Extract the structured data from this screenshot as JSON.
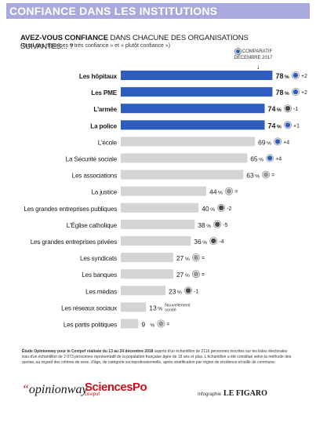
{
  "header": {
    "banner_title": "CONFIANCE DANS LES INSTITUTIONS",
    "question_bold": "AVEZ-VOUS CONFIANCE",
    "question_rest": " DANS CHACUNE DES ORGANISATIONS SUIVANTES... ?",
    "subquestion": "(Total des réponses « très confiance » et « plutôt confiance »)",
    "comparison_line1": "COMPARATIF",
    "comparison_line2": "DÉCEMBRE 2017",
    "arrow": "↓"
  },
  "colors": {
    "banner": "#a9a9de",
    "bar_highlight": "#2f5cbf",
    "bar_normal": "#d4d4d4",
    "icon_up": "#2f5cbf",
    "icon_down": "#4a4a4a",
    "icon_equal": "#9a9a9a",
    "brand_red": "#c4121a"
  },
  "chart_data": {
    "type": "bar",
    "orientation": "horizontal",
    "title": "AVEZ-VOUS CONFIANCE DANS CHACUNE DES ORGANISATIONS SUIVANTES... ?",
    "value_unit": "%",
    "xlim": [
      0,
      100
    ],
    "grid": false,
    "categories": [
      "Les hôpitaux",
      "Les PME",
      "L'armée",
      "La police",
      "L'école",
      "La Sécurité sociale",
      "Les associations",
      "La justice",
      "Les grandes entreprises publiques",
      "L'Église catholique",
      "Les grandes entreprises privées",
      "Les syndicats",
      "Les banques",
      "Les médias",
      "Les réseaux sociaux",
      "Les partis politiques"
    ],
    "values": [
      78,
      78,
      74,
      74,
      69,
      65,
      63,
      44,
      40,
      38,
      36,
      27,
      27,
      23,
      13,
      9
    ],
    "highlighted": [
      true,
      true,
      true,
      true,
      false,
      false,
      false,
      false,
      false,
      false,
      false,
      false,
      false,
      false,
      false,
      false
    ],
    "comparison_dec_2017": [
      {
        "direction": "up",
        "label": "+2"
      },
      {
        "direction": "up",
        "label": "+2"
      },
      {
        "direction": "down",
        "label": "-1"
      },
      {
        "direction": "up",
        "label": "+1"
      },
      {
        "direction": "up",
        "label": "+4"
      },
      {
        "direction": "up",
        "label": "+4"
      },
      {
        "direction": "equal",
        "label": "="
      },
      {
        "direction": "equal",
        "label": "="
      },
      {
        "direction": "down",
        "label": "-2"
      },
      {
        "direction": "down",
        "label": "-5"
      },
      {
        "direction": "down",
        "label": "-4"
      },
      {
        "direction": "equal",
        "label": "="
      },
      {
        "direction": "equal",
        "label": "="
      },
      {
        "direction": "down",
        "label": "-1"
      },
      {
        "direction": "new",
        "label": "Nouvellement sondé"
      },
      {
        "direction": "equal",
        "label": "="
      }
    ]
  },
  "footer": {
    "source_bold": "Étude Opinionway pour le Cevipof réalisée du 13 au 24 décembre 2018",
    "source_text": " auprès d'un échantillon de 2116 personnes inscrites sur les listes électorales issu d'un échantillon de 2 073 personnes représentatif de la population française âgée de 18 ans et plus. L'échantillon a été constitué selon la méthode des quotas, au regard des critères de sexe, d'âge, de catégorie socioprofessionnelle, après stratification par région de résidence et taille de commune.",
    "logo_opinionway": "opinionway",
    "logo_opinionway_quote": "“",
    "logo_sciencespo": "SciencesPo",
    "logo_sciencespo_sub": "cevipof",
    "credit_prefix": "Infographie",
    "credit_brand": "LE FIGARO"
  }
}
